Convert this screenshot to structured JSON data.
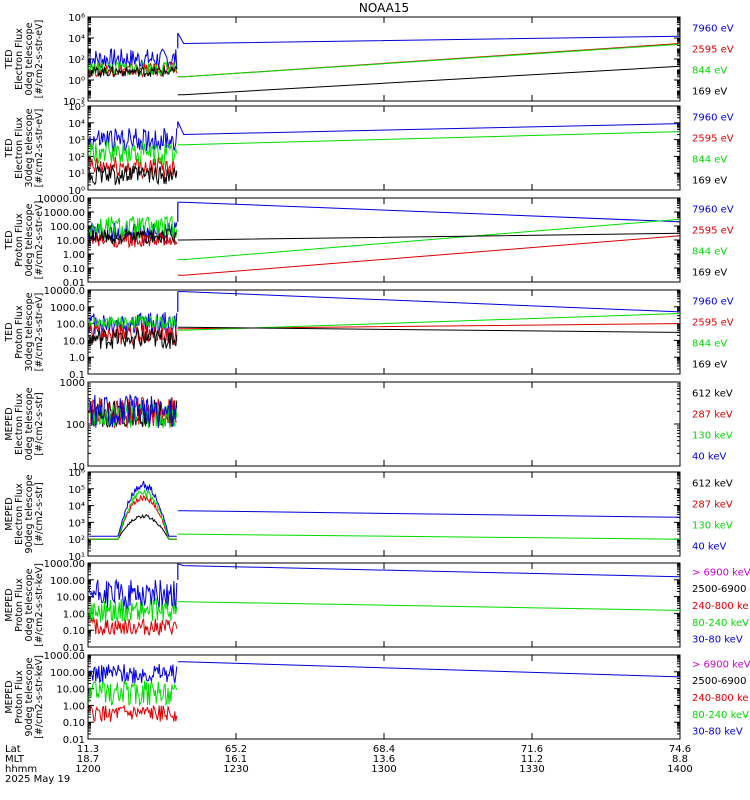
{
  "title": "NOAA15",
  "colors": {
    "black": "#000000",
    "red": "#dd0000",
    "green": "#00dd00",
    "blue": "#0000dd",
    "magenta": "#cc00cc"
  },
  "footer": {
    "row_labels": [
      "Lat",
      "MLT",
      "hhmm",
      "2025 May 19"
    ],
    "ticks": [
      {
        "lat": "11.3",
        "mlt": "18.7",
        "hhmm": "1200"
      },
      {
        "lat": "65.2",
        "mlt": "16.1",
        "hhmm": "1230"
      },
      {
        "lat": "68.4",
        "mlt": "13.6",
        "hhmm": "1300"
      },
      {
        "lat": "71.6",
        "mlt": "11.2",
        "hhmm": "1330"
      },
      {
        "lat": "74.6",
        "mlt": "8.8",
        "hhmm": "1400"
      }
    ]
  },
  "chart_data": [
    {
      "type": "line",
      "ylog": true,
      "ylim": [
        0.01,
        1000000
      ],
      "ylabel": [
        "TED",
        "Electron Flux",
        "0deg telescope",
        "[#/cm2-s-str-eV]"
      ],
      "yticks": [
        {
          "v": 0.01,
          "l": "10⁻²"
        },
        {
          "v": 1,
          "l": "10⁰"
        },
        {
          "v": 100,
          "l": "10²"
        },
        {
          "v": 10000,
          "l": "10⁴"
        },
        {
          "v": 1000000,
          "l": "10⁶"
        }
      ],
      "channels": [
        "7960 eV",
        "2595 eV",
        "844 eV",
        "169 eV"
      ],
      "burst_range": [
        1,
        100
      ],
      "series": [
        {
          "name": "7960 eV",
          "color": "blue",
          "burst": [
            10,
            1000
          ],
          "jump": 30000,
          "line": [
            [
              1220,
              3000
            ],
            [
              1400,
              15000
            ]
          ]
        },
        {
          "name": "2595 eV",
          "color": "red",
          "burst": [
            2,
            40
          ],
          "jump": 0,
          "line": [
            [
              1220,
              2
            ],
            [
              1400,
              3000
            ]
          ]
        },
        {
          "name": "844 eV",
          "color": "green",
          "burst": [
            3,
            60
          ],
          "jump": 0,
          "line": [
            [
              1220,
              2
            ],
            [
              1400,
              2500
            ]
          ]
        },
        {
          "name": "169 eV",
          "color": "black",
          "burst": [
            2,
            20
          ],
          "jump": 0,
          "line": [
            [
              1220,
              0.04
            ],
            [
              1400,
              20
            ]
          ]
        }
      ]
    },
    {
      "type": "line",
      "ylog": true,
      "ylim": [
        1,
        100000
      ],
      "ylabel": [
        "TED",
        "Electron Flux",
        "30deg telescope",
        "[#/cm2-s-str-eV]"
      ],
      "yticks": [
        {
          "v": 1,
          "l": "10⁰"
        },
        {
          "v": 10,
          "l": "10¹"
        },
        {
          "v": 100,
          "l": "10²"
        },
        {
          "v": 1000,
          "l": "10³"
        },
        {
          "v": 10000,
          "l": "10⁴"
        },
        {
          "v": 100000,
          "l": "10⁵"
        }
      ],
      "channels": [
        "7960 eV",
        "2595 eV",
        "844 eV",
        "169 eV"
      ],
      "burst_range": [
        1,
        1000
      ],
      "series": [
        {
          "name": "7960 eV",
          "color": "blue",
          "burst": [
            200,
            5000
          ],
          "jump": 12000,
          "line": [
            [
              1220,
              2000
            ],
            [
              1400,
              9000
            ]
          ]
        },
        {
          "name": "2595 eV",
          "color": "red",
          "burst": [
            5,
            100
          ],
          "jump": 0,
          "line": null
        },
        {
          "name": "844 eV",
          "color": "green",
          "burst": [
            30,
            800
          ],
          "jump": 0,
          "line": [
            [
              1220,
              500
            ],
            [
              1400,
              3000
            ]
          ]
        },
        {
          "name": "169 eV",
          "color": "black",
          "burst": [
            2,
            30
          ],
          "jump": 0,
          "line": null
        }
      ]
    },
    {
      "type": "line",
      "ylog": true,
      "ylim": [
        0.01,
        10000
      ],
      "ylabel": [
        "TED",
        "Proton Flux",
        "0deg telescope",
        "[#/cm2-s-str-eV]"
      ],
      "yticks": [
        {
          "v": 0.01,
          "l": "0.01"
        },
        {
          "v": 0.1,
          "l": "0.10"
        },
        {
          "v": 1,
          "l": "1.00"
        },
        {
          "v": 10,
          "l": "10.00"
        },
        {
          "v": 100,
          "l": "100.00"
        },
        {
          "v": 1000,
          "l": "1000.00"
        },
        {
          "v": 10000,
          "l": "10000.00"
        }
      ],
      "channels": [
        "7960 eV",
        "2595 eV",
        "844 eV",
        "169 eV"
      ],
      "burst_range": [
        1,
        1000
      ],
      "series": [
        {
          "name": "7960 eV",
          "color": "blue",
          "burst": [
            5,
            200
          ],
          "jump": 5000,
          "line": [
            [
              1220,
              5000
            ],
            [
              1400,
              200
            ]
          ]
        },
        {
          "name": "2595 eV",
          "color": "red",
          "burst": [
            3,
            30
          ],
          "jump": 0,
          "line": [
            [
              1220,
              0.03
            ],
            [
              1400,
              20
            ]
          ]
        },
        {
          "name": "844 eV",
          "color": "green",
          "burst": [
            10,
            500
          ],
          "jump": 0,
          "line": [
            [
              1220,
              0.4
            ],
            [
              1400,
              300
            ]
          ]
        },
        {
          "name": "169 eV",
          "color": "black",
          "burst": [
            5,
            60
          ],
          "jump": 0,
          "line": [
            [
              1220,
              10
            ],
            [
              1400,
              30
            ]
          ]
        }
      ]
    },
    {
      "type": "line",
      "ylog": true,
      "ylim": [
        0.1,
        10000
      ],
      "ylabel": [
        "TED",
        "Proton Flux",
        "30deg telescope",
        "[#/cm2-s-str-eV]"
      ],
      "yticks": [
        {
          "v": 0.1,
          "l": "0.1"
        },
        {
          "v": 1,
          "l": "1.0"
        },
        {
          "v": 10,
          "l": "10.0"
        },
        {
          "v": 100,
          "l": "100.0"
        },
        {
          "v": 1000,
          "l": "1000.0"
        },
        {
          "v": 10000,
          "l": "10000.0"
        }
      ],
      "channels": [
        "7960 eV",
        "2595 eV",
        "844 eV",
        "169 eV"
      ],
      "burst_range": [
        3,
        600
      ],
      "series": [
        {
          "name": "7960 eV",
          "color": "blue",
          "burst": [
            20,
            500
          ],
          "jump": 8000,
          "line": [
            [
              1220,
              8000
            ],
            [
              1400,
              500
            ]
          ]
        },
        {
          "name": "2595 eV",
          "color": "red",
          "burst": [
            5,
            100
          ],
          "jump": 0,
          "line": [
            [
              1220,
              50
            ],
            [
              1400,
              100
            ]
          ]
        },
        {
          "name": "844 eV",
          "color": "green",
          "burst": [
            50,
            300
          ],
          "jump": 0,
          "line": [
            [
              1220,
              40
            ],
            [
              1400,
              400
            ]
          ]
        },
        {
          "name": "169 eV",
          "color": "black",
          "burst": [
            3,
            50
          ],
          "jump": 0,
          "line": [
            [
              1220,
              60
            ],
            [
              1400,
              30
            ]
          ]
        }
      ]
    },
    {
      "type": "line",
      "ylog": true,
      "ylim": [
        10,
        1000
      ],
      "ylabel": [
        "MEPED",
        "Electron Flux",
        "0deg telescope",
        "[#/cm2-s-str]"
      ],
      "yticks": [
        {
          "v": 10,
          "l": "10"
        },
        {
          "v": 100,
          "l": "100"
        },
        {
          "v": 1000,
          "l": "1000"
        }
      ],
      "channels": [
        "612 keV",
        "287 keV",
        "130 keV",
        "40 keV"
      ],
      "burst_range": [
        70,
        500
      ],
      "series": [
        {
          "name": "612 keV",
          "color": "black",
          "burst": [
            80,
            400
          ],
          "jump": 0,
          "line": null
        },
        {
          "name": "287 keV",
          "color": "red",
          "burst": [
            80,
            450
          ],
          "jump": 0,
          "line": null
        },
        {
          "name": "130 keV",
          "color": "green",
          "burst": [
            80,
            300
          ],
          "jump": 0,
          "line": null
        },
        {
          "name": "40 keV",
          "color": "blue",
          "burst": [
            80,
            500
          ],
          "jump": 0,
          "line": null
        }
      ]
    },
    {
      "type": "line",
      "ylog": true,
      "ylim": [
        10,
        1000000
      ],
      "ylabel": [
        "MEPED",
        "Electron Flux",
        "90deg telescope",
        "[#/cm2-s-str]"
      ],
      "yticks": [
        {
          "v": 10,
          "l": "10¹"
        },
        {
          "v": 100,
          "l": "10²"
        },
        {
          "v": 1000,
          "l": "10³"
        },
        {
          "v": 10000,
          "l": "10⁴"
        },
        {
          "v": 100000,
          "l": "10⁵"
        },
        {
          "v": 1000000,
          "l": "10⁶"
        }
      ],
      "channels": [
        "612 keV",
        "287 keV",
        "130 keV",
        "40 keV"
      ],
      "burst_range": [
        100,
        300000
      ],
      "series": [
        {
          "name": "612 keV",
          "color": "black",
          "burst": [
            100,
            3000
          ],
          "jump": 0,
          "line": null
        },
        {
          "name": "287 keV",
          "color": "red",
          "burst": [
            100,
            50000
          ],
          "jump": 0,
          "line": null
        },
        {
          "name": "130 keV",
          "color": "green",
          "burst": [
            100,
            100000
          ],
          "jump": 0,
          "line": [
            [
              1220,
              200
            ],
            [
              1400,
              100
            ]
          ]
        },
        {
          "name": "40 keV",
          "color": "blue",
          "burst": [
            150,
            300000
          ],
          "jump": 0,
          "line": [
            [
              1220,
              5000
            ],
            [
              1400,
              2000
            ]
          ]
        }
      ]
    },
    {
      "type": "line",
      "ylog": true,
      "ylim": [
        0.01,
        1000
      ],
      "ylabel": [
        "MEPED",
        "Proton Flux",
        "0deg telescope",
        "[#/cm2-s-str-keV]"
      ],
      "yticks": [
        {
          "v": 0.01,
          "l": "0.01"
        },
        {
          "v": 0.1,
          "l": "0.10"
        },
        {
          "v": 1,
          "l": "1.00"
        },
        {
          "v": 10,
          "l": "10.00"
        },
        {
          "v": 100,
          "l": "100.00"
        },
        {
          "v": 1000,
          "l": "1000.00"
        }
      ],
      "channels": [
        "> 6900 keV",
        "2500-6900",
        "240-800 ke",
        "80-240 keV",
        "30-80 keV"
      ],
      "burst_range": [
        0.05,
        800
      ],
      "series": [
        {
          "name": "> 6900 keV",
          "color": "magenta",
          "burst": null,
          "jump": 0,
          "line": null
        },
        {
          "name": "2500-6900",
          "color": "black",
          "burst": null,
          "jump": 0,
          "line": null
        },
        {
          "name": "240-800 ke",
          "color": "red",
          "burst": [
            0.05,
            0.5
          ],
          "jump": 0,
          "line": null
        },
        {
          "name": "80-240 keV",
          "color": "green",
          "burst": [
            0.3,
            8
          ],
          "jump": 0,
          "line": [
            [
              1220,
              5
            ],
            [
              1400,
              1.5
            ]
          ]
        },
        {
          "name": "30-80 keV",
          "color": "blue",
          "burst": [
            2,
            100
          ],
          "jump": 900,
          "line": [
            [
              1220,
              700
            ],
            [
              1400,
              150
            ]
          ]
        }
      ]
    },
    {
      "type": "line",
      "ylog": true,
      "ylim": [
        0.01,
        1000
      ],
      "ylabel": [
        "MEPED",
        "Proton Flux",
        "90deg telescope",
        "[#/cm2-s-str-keV]"
      ],
      "yticks": [
        {
          "v": 0.01,
          "l": "0.01"
        },
        {
          "v": 0.1,
          "l": "0.10"
        },
        {
          "v": 1,
          "l": "1.00"
        },
        {
          "v": 10,
          "l": "10.00"
        },
        {
          "v": 100,
          "l": "100.00"
        },
        {
          "v": 1000,
          "l": "1000.00"
        }
      ],
      "channels": [
        "> 6900 keV",
        "2500-6900",
        "240-800 ke",
        "80-240 keV",
        "30-80 keV"
      ],
      "burst_range": [
        0.1,
        400
      ],
      "series": [
        {
          "name": "> 6900 keV",
          "color": "magenta",
          "burst": null,
          "jump": 0,
          "line": null
        },
        {
          "name": "2500-6900",
          "color": "black",
          "burst": null,
          "jump": 0,
          "line": null
        },
        {
          "name": "240-800 ke",
          "color": "red",
          "burst": [
            0.1,
            1
          ],
          "jump": 0,
          "line": null
        },
        {
          "name": "80-240 keV",
          "color": "green",
          "burst": [
            1,
            30
          ],
          "jump": 0,
          "line": null
        },
        {
          "name": "30-80 keV",
          "color": "blue",
          "burst": [
            20,
            300
          ],
          "jump": 0,
          "line": [
            [
              1220,
              400
            ],
            [
              1400,
              50
            ]
          ]
        }
      ]
    }
  ]
}
